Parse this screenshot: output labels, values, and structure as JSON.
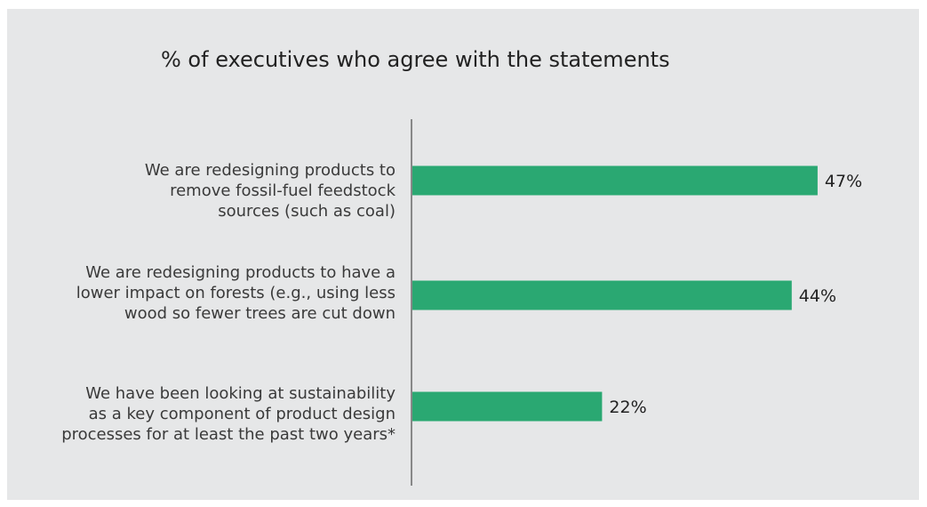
{
  "chart_data": {
    "type": "bar",
    "orientation": "horizontal",
    "title": "% of executives who agree with the statements",
    "categories": [
      [
        "We are redesigning products to",
        "remove fossil-fuel feedstock",
        "sources (such as coal)"
      ],
      [
        "We are redesigning products to have a",
        "lower impact on forests (e.g., using less",
        "wood so fewer trees are cut down"
      ],
      [
        "We have been looking at sustainability",
        "as a key component of product design",
        "processes for at least the past two years*"
      ]
    ],
    "values": [
      47,
      44,
      22
    ],
    "data_labels": [
      "47%",
      "44%",
      "22%"
    ],
    "xlim": [
      0,
      50
    ],
    "grid": false,
    "bar_color": "#2aa872"
  }
}
